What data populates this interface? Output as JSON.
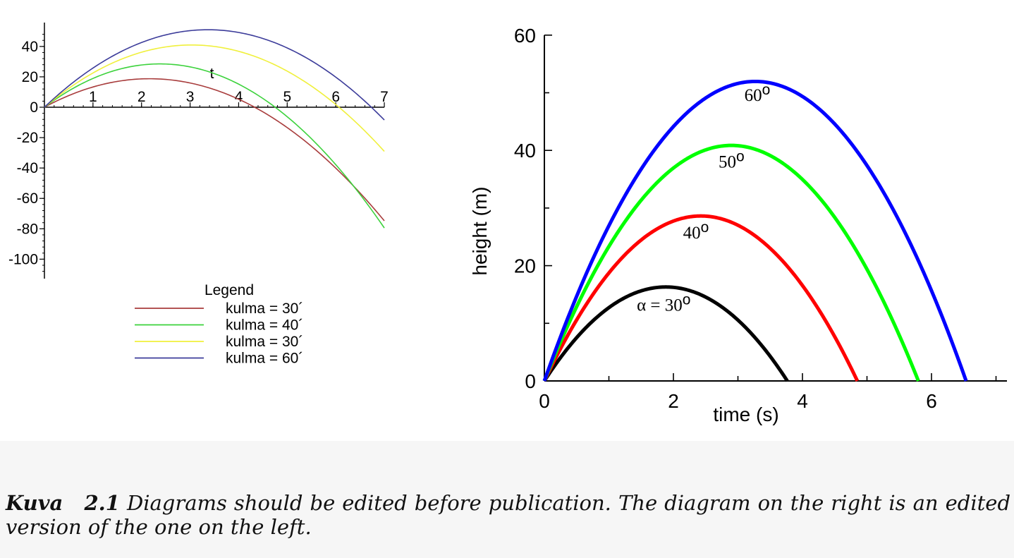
{
  "chart_data": [
    {
      "type": "line",
      "title": "",
      "xlabel": "t",
      "ylabel": "",
      "xlim": [
        0,
        7
      ],
      "ylim": [
        -110,
        52
      ],
      "x_ticks": [
        "1",
        "2",
        "3",
        "4",
        "5",
        "6",
        "7"
      ],
      "y_ticks": [
        "40",
        "20",
        "0",
        "-20",
        "-40",
        "-60",
        "-80",
        "-100"
      ],
      "y_tick_values": [
        40,
        20,
        0,
        -20,
        -40,
        -60,
        -80,
        -100
      ],
      "legend_title": "Legend",
      "legend_position": "bottom",
      "grid": false,
      "series": [
        {
          "name": "kulma = 30´",
          "color": "#a83c3c",
          "v0": 17.32,
          "g": 8.0
        },
        {
          "name": "kulma = 40´",
          "color": "#3cd23c",
          "v0": 24.0,
          "g": 10.1
        },
        {
          "name": "kulma = 30´",
          "color": "#f0f03c",
          "v0": 27.0,
          "g": 8.9
        },
        {
          "name": "kulma = 60´",
          "color": "#3c3c9a",
          "v0": 30.3,
          "g": 9.0
        }
      ]
    },
    {
      "type": "line",
      "title": "",
      "xlabel": "time (s)",
      "ylabel": "height (m)",
      "xlim": [
        0,
        7
      ],
      "ylim": [
        0,
        60
      ],
      "x_ticks": [
        "0",
        "2",
        "4",
        "6"
      ],
      "x_tick_values": [
        0,
        2,
        4,
        6
      ],
      "y_ticks": [
        "0",
        "20",
        "40",
        "60"
      ],
      "y_tick_values": [
        0,
        20,
        40,
        60
      ],
      "grid": false,
      "annotations": [
        "α = 30o",
        "40o",
        "50o",
        "60o"
      ],
      "series": [
        {
          "name": "α = 30o",
          "label": "α = 30",
          "color": "#000000",
          "v0": 17.32,
          "g": 9.2,
          "label_x": 1.85,
          "label_y": 12.2
        },
        {
          "name": "40o",
          "label": "40",
          "color": "#ff0000",
          "v0": 23.6,
          "g": 9.73,
          "label_x": 2.35,
          "label_y": 24.7
        },
        {
          "name": "50o",
          "label": "50",
          "color": "#00ff00",
          "v0": 28.2,
          "g": 9.73,
          "label_x": 2.9,
          "label_y": 37.0
        },
        {
          "name": "60o",
          "label": "60",
          "color": "#0000ff",
          "v0": 31.8,
          "g": 9.73,
          "label_x": 3.3,
          "label_y": 48.6
        }
      ]
    }
  ],
  "caption": {
    "label": "Kuva",
    "number": "2.1",
    "text": "Diagrams should be edited before publication. The diagram on the right is an edited version of the one on the left."
  }
}
